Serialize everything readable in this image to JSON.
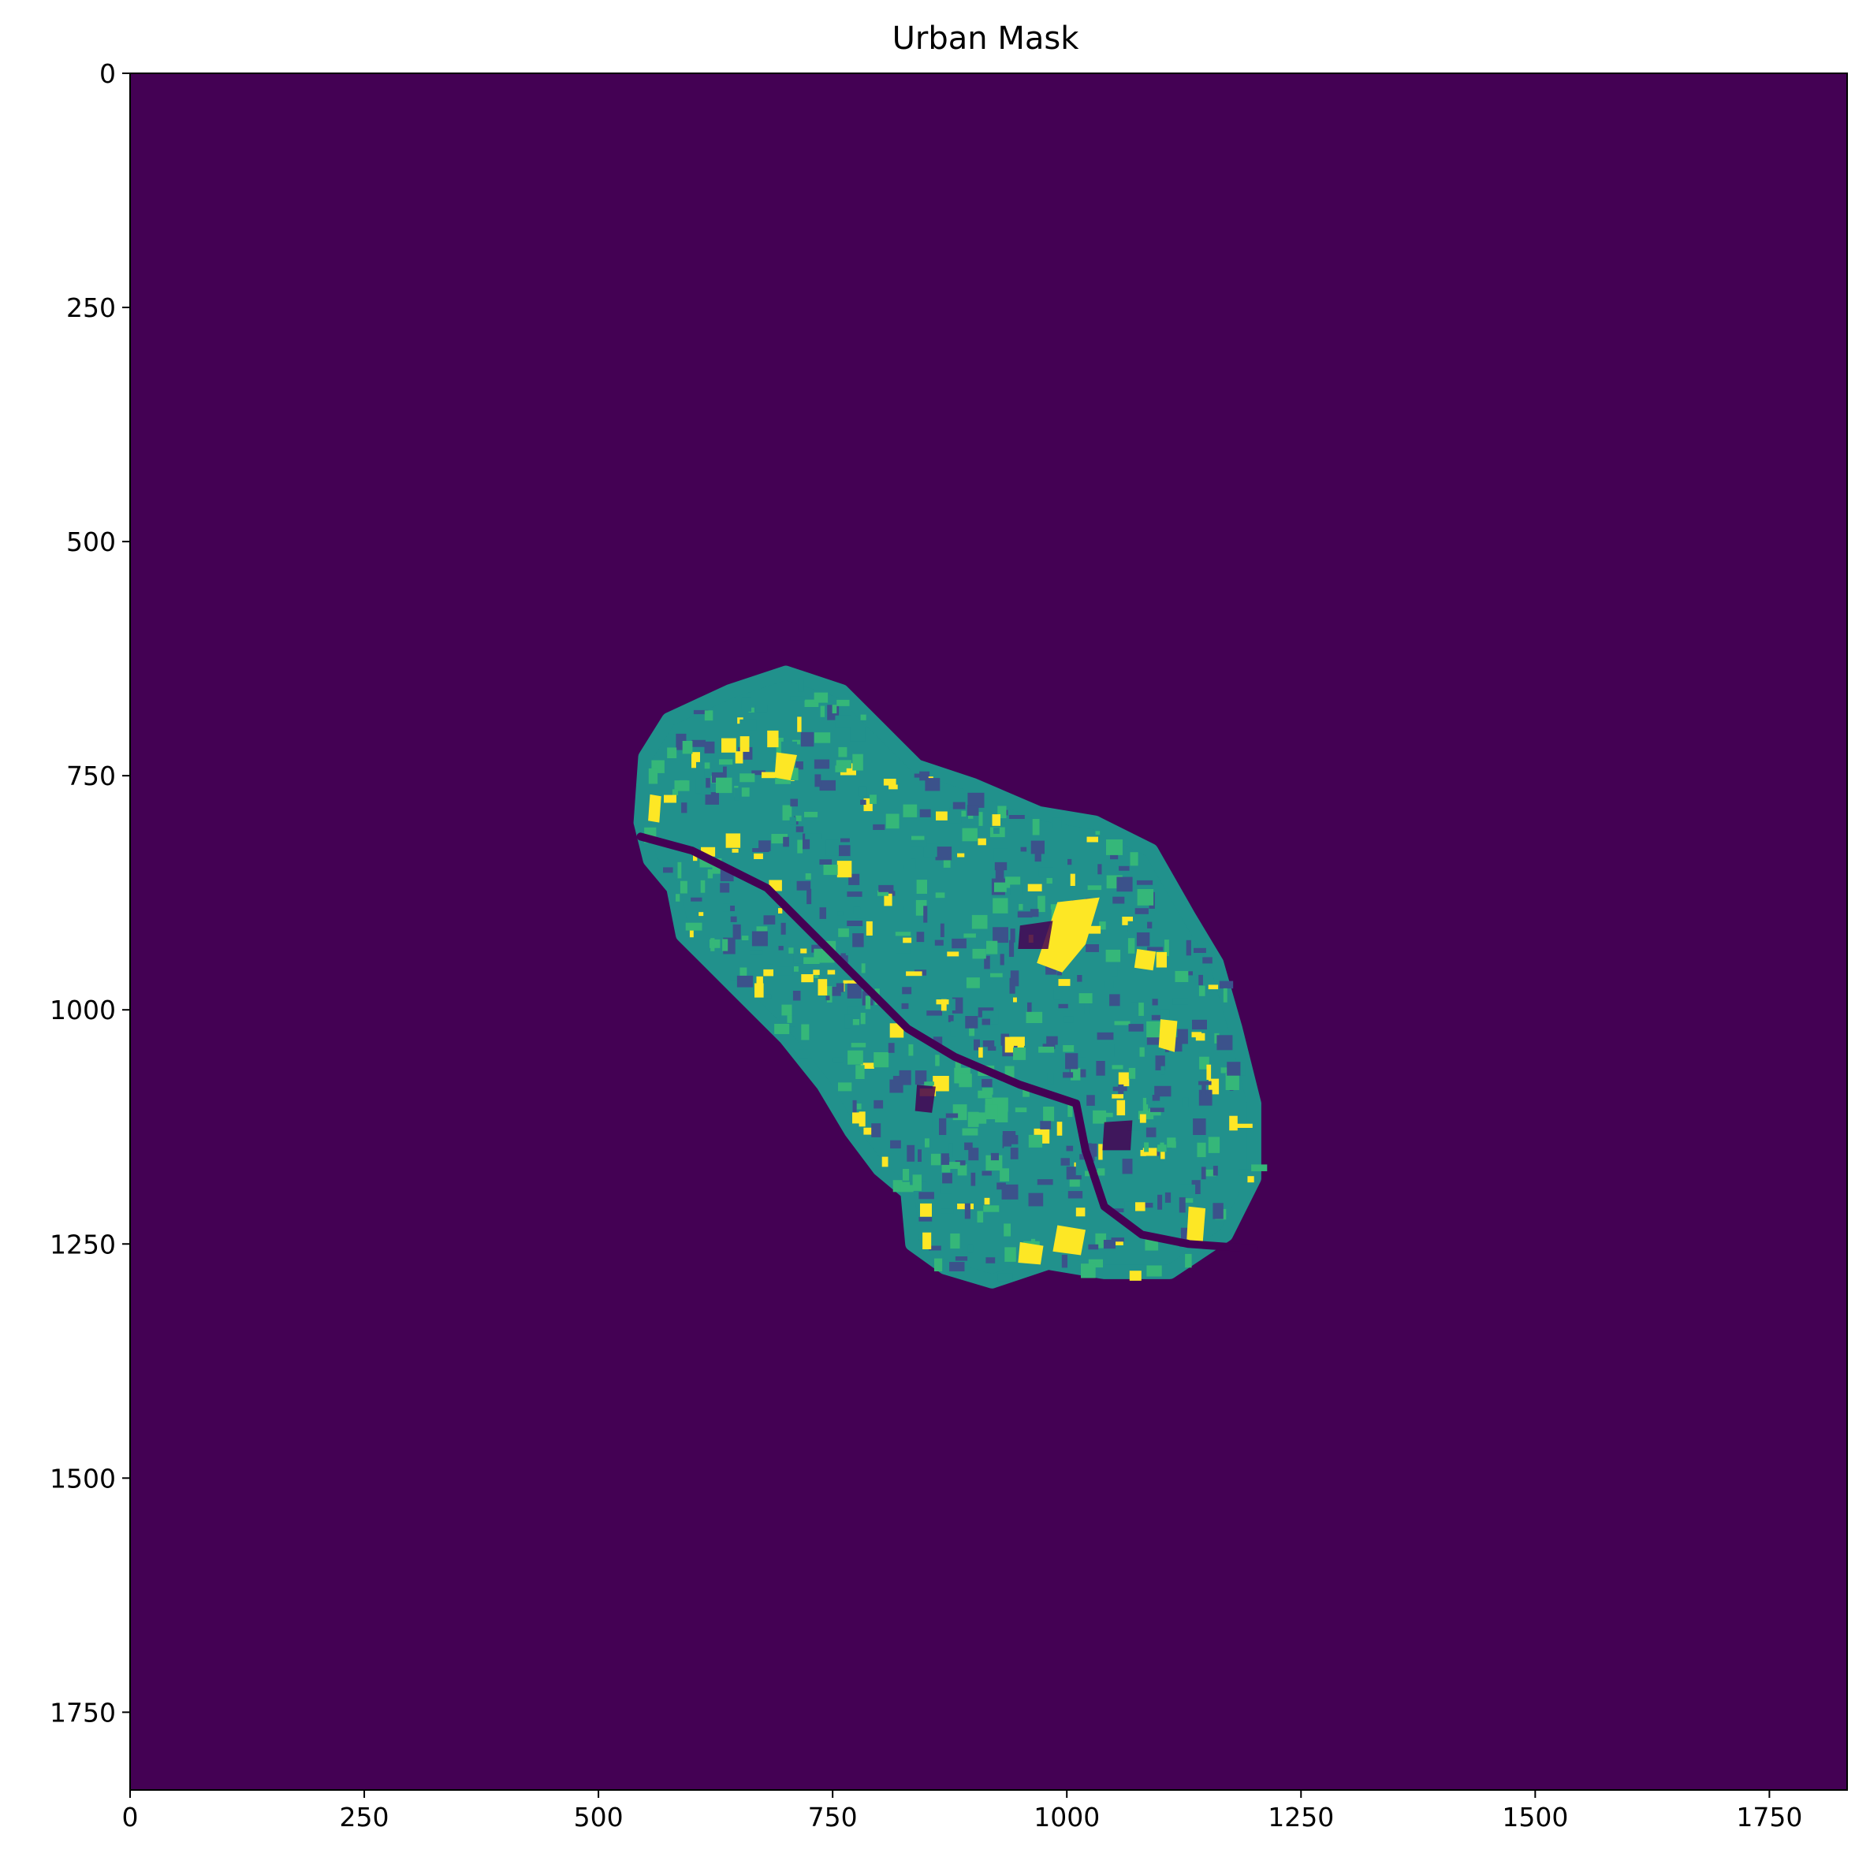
{
  "chart_data": {
    "type": "heatmap",
    "title": "Urban Mask",
    "xlabel": "",
    "ylabel": "",
    "xlim": [
      0,
      1833
    ],
    "ylim": [
      1833,
      0
    ],
    "x_ticks": [
      0,
      250,
      500,
      750,
      1000,
      1250,
      1500,
      1750
    ],
    "y_ticks": [
      0,
      250,
      500,
      750,
      1000,
      1250,
      1500,
      1750
    ],
    "colormap": "viridis",
    "grid": false,
    "legend": "none",
    "colors": {
      "background_class": "#440154",
      "low_class": "#3b528b",
      "mid_class": "#21918c",
      "high_class": "#35b779",
      "top_class": "#fde725"
    },
    "regions": [
      {
        "name": "urban-footprint",
        "fill": "#21918c",
        "outline": [
          [
            545,
            800
          ],
          [
            550,
            730
          ],
          [
            575,
            690
          ],
          [
            640,
            660
          ],
          [
            700,
            640
          ],
          [
            760,
            660
          ],
          [
            800,
            700
          ],
          [
            840,
            740
          ],
          [
            900,
            760
          ],
          [
            970,
            790
          ],
          [
            1030,
            800
          ],
          [
            1090,
            830
          ],
          [
            1130,
            900
          ],
          [
            1160,
            950
          ],
          [
            1180,
            1020
          ],
          [
            1200,
            1100
          ],
          [
            1200,
            1180
          ],
          [
            1170,
            1240
          ],
          [
            1110,
            1280
          ],
          [
            1040,
            1280
          ],
          [
            980,
            1270
          ],
          [
            920,
            1290
          ],
          [
            870,
            1275
          ],
          [
            835,
            1250
          ],
          [
            830,
            1195
          ],
          [
            800,
            1170
          ],
          [
            770,
            1130
          ],
          [
            740,
            1080
          ],
          [
            700,
            1030
          ],
          [
            650,
            980
          ],
          [
            590,
            920
          ],
          [
            580,
            870
          ],
          [
            555,
            840
          ]
        ]
      }
    ],
    "river": [
      [
        545,
        815
      ],
      [
        600,
        830
      ],
      [
        680,
        870
      ],
      [
        730,
        920
      ],
      [
        790,
        980
      ],
      [
        830,
        1020
      ],
      [
        880,
        1050
      ],
      [
        950,
        1080
      ],
      [
        1010,
        1100
      ],
      [
        1020,
        1150
      ],
      [
        1040,
        1210
      ],
      [
        1080,
        1240
      ],
      [
        1130,
        1250
      ],
      [
        1200,
        1255
      ]
    ],
    "bright_patches": [
      [
        [
          990,
          885
        ],
        [
          1035,
          880
        ],
        [
          1020,
          930
        ],
        [
          995,
          960
        ],
        [
          968,
          950
        ]
      ],
      [
        [
          690,
          725
        ],
        [
          712,
          728
        ],
        [
          705,
          755
        ],
        [
          688,
          752
        ]
      ],
      [
        [
          1100,
          1010
        ],
        [
          1118,
          1012
        ],
        [
          1115,
          1045
        ],
        [
          1098,
          1040
        ]
      ],
      [
        [
          1130,
          1210
        ],
        [
          1148,
          1212
        ],
        [
          1145,
          1250
        ],
        [
          1128,
          1245
        ]
      ],
      [
        [
          990,
          1230
        ],
        [
          1020,
          1235
        ],
        [
          1015,
          1262
        ],
        [
          985,
          1258
        ]
      ],
      [
        [
          950,
          1248
        ],
        [
          975,
          1252
        ],
        [
          972,
          1272
        ],
        [
          948,
          1270
        ]
      ],
      [
        [
          1075,
          935
        ],
        [
          1095,
          938
        ],
        [
          1092,
          958
        ],
        [
          1072,
          955
        ]
      ],
      [
        [
          555,
          770
        ],
        [
          567,
          772
        ],
        [
          565,
          800
        ],
        [
          553,
          798
        ]
      ]
    ],
    "dark_patches": [
      [
        [
          950,
          910
        ],
        [
          985,
          905
        ],
        [
          980,
          935
        ],
        [
          948,
          935
        ]
      ],
      [
        [
          1040,
          1120
        ],
        [
          1070,
          1118
        ],
        [
          1068,
          1150
        ],
        [
          1038,
          1150
        ]
      ],
      [
        [
          840,
          1080
        ],
        [
          860,
          1082
        ],
        [
          856,
          1110
        ],
        [
          838,
          1108
        ]
      ]
    ]
  }
}
